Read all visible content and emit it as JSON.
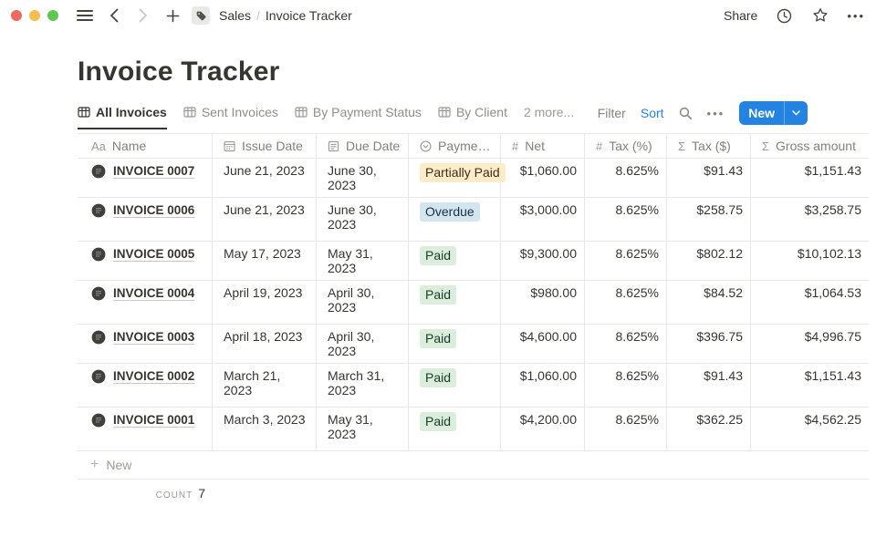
{
  "topbar": {
    "breadcrumb": {
      "workspace": "Sales",
      "separator": "/",
      "page": "Invoice Tracker"
    },
    "share_label": "Share"
  },
  "page": {
    "title": "Invoice Tracker"
  },
  "views": {
    "tabs": [
      {
        "label": "All Invoices",
        "active": true
      },
      {
        "label": "Sent Invoices",
        "active": false
      },
      {
        "label": "By Payment Status",
        "active": false
      },
      {
        "label": "By Client",
        "active": false
      }
    ],
    "more_label": "2 more...",
    "toolbar": {
      "filter_label": "Filter",
      "sort_label": "Sort",
      "new_label": "New"
    }
  },
  "glyphs": {
    "text_property": "Aa",
    "number_property": "#",
    "formula_property": "Σ",
    "plus": "+",
    "ellipsis": "•••"
  },
  "table": {
    "columns": [
      {
        "label": "Name",
        "icon": "text"
      },
      {
        "label": "Issue Date",
        "icon": "calendar"
      },
      {
        "label": "Due Date",
        "icon": "date"
      },
      {
        "label": "Payment ...",
        "icon": "select"
      },
      {
        "label": "Net",
        "icon": "number"
      },
      {
        "label": "Tax (%)",
        "icon": "number"
      },
      {
        "label": "Tax ($)",
        "icon": "formula"
      },
      {
        "label": "Gross amount",
        "icon": "formula"
      }
    ],
    "rows": [
      {
        "name": "INVOICE 0007",
        "issue_date": "June 21, 2023",
        "due_date": "June 30, 2023",
        "status": "Partially Paid",
        "status_color": "yellow",
        "net": "$1,060.00",
        "tax_pct": "8.625%",
        "tax_usd": "$91.43",
        "gross": "$1,151.43",
        "tall": false
      },
      {
        "name": "INVOICE 0006",
        "issue_date": "June 21, 2023",
        "due_date": "June 30, 2023",
        "status": "Overdue",
        "status_color": "blue",
        "net": "$3,000.00",
        "tax_pct": "8.625%",
        "tax_usd": "$258.75",
        "gross": "$3,258.75",
        "tall": true
      },
      {
        "name": "INVOICE 0005",
        "issue_date": "May 17, 2023",
        "due_date": "May 31, 2023",
        "status": "Paid",
        "status_color": "green",
        "net": "$9,300.00",
        "tax_pct": "8.625%",
        "tax_usd": "$802.12",
        "gross": "$10,102.13",
        "tall": false
      },
      {
        "name": "INVOICE 0004",
        "issue_date": "April 19, 2023",
        "due_date": "April 30, 2023",
        "status": "Paid",
        "status_color": "green",
        "net": "$980.00",
        "tax_pct": "8.625%",
        "tax_usd": "$84.52",
        "gross": "$1,064.53",
        "tall": true
      },
      {
        "name": "INVOICE 0003",
        "issue_date": "April 18, 2023",
        "due_date": "April 30, 2023",
        "status": "Paid",
        "status_color": "green",
        "net": "$4,600.00",
        "tax_pct": "8.625%",
        "tax_usd": "$396.75",
        "gross": "$4,996.75",
        "tall": false
      },
      {
        "name": "INVOICE 0002",
        "issue_date": "March 21, 2023",
        "due_date": "March 31, 2023",
        "status": "Paid",
        "status_color": "green",
        "net": "$1,060.00",
        "tax_pct": "8.625%",
        "tax_usd": "$91.43",
        "gross": "$1,151.43",
        "tall": true
      },
      {
        "name": "INVOICE 0001",
        "issue_date": "March 3, 2023",
        "due_date": "May 31, 2023",
        "status": "Paid",
        "status_color": "green",
        "net": "$4,200.00",
        "tax_pct": "8.625%",
        "tax_usd": "$362.25",
        "gross": "$4,562.25",
        "tall": true
      }
    ],
    "new_row_label": "New",
    "footer": {
      "count_label": "COUNT",
      "count_value": "7"
    }
  },
  "colors": {
    "accent_blue": "#2383e2",
    "badges": {
      "yellow": {
        "bg": "#fdecc8",
        "text": "#402c1b"
      },
      "blue": {
        "bg": "#d3e5ef",
        "text": "#183347"
      },
      "green": {
        "bg": "#dbeddb",
        "text": "#1c3829"
      }
    }
  }
}
